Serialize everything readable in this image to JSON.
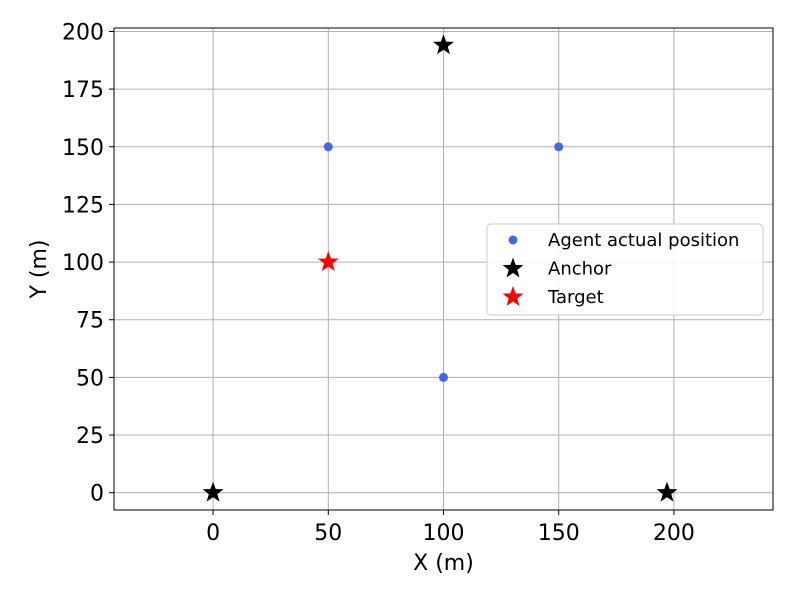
{
  "chart_data": {
    "type": "scatter",
    "xlabel": "X (m)",
    "ylabel": "Y (m)",
    "xlim": [
      -43,
      243
    ],
    "ylim": [
      -7.5,
      201.5
    ],
    "xticks": [
      0,
      50,
      100,
      150,
      200
    ],
    "yticks": [
      0,
      25,
      50,
      75,
      100,
      125,
      150,
      175,
      200
    ],
    "grid": true,
    "legend_position": "center-right",
    "series": [
      {
        "name": "Agent actual position",
        "marker": "circle",
        "color": "#4169e1",
        "points": [
          [
            50,
            150
          ],
          [
            150,
            150
          ],
          [
            100,
            50
          ]
        ]
      },
      {
        "name": "Anchor",
        "marker": "star",
        "color": "#000000",
        "points": [
          [
            100,
            194
          ],
          [
            0,
            0
          ],
          [
            197,
            0
          ]
        ]
      },
      {
        "name": "Target",
        "marker": "star",
        "color": "#ff0000",
        "points": [
          [
            50,
            100
          ]
        ]
      }
    ]
  }
}
